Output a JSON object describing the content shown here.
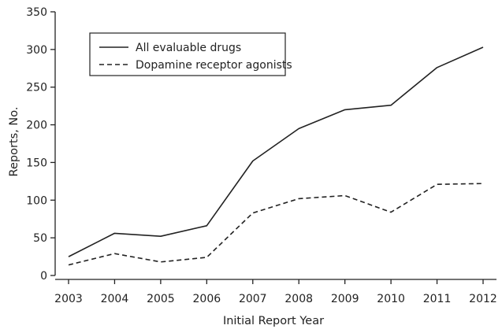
{
  "chart_data": {
    "type": "line",
    "x": [
      2003,
      2004,
      2005,
      2006,
      2007,
      2008,
      2009,
      2010,
      2011,
      2012
    ],
    "x_tick_labels": [
      "2003",
      "2004",
      "2005",
      "2006",
      "2007",
      "2008",
      "2009",
      "2010",
      "2011",
      "2012"
    ],
    "y_ticks": [
      0,
      50,
      100,
      150,
      200,
      250,
      300,
      350
    ],
    "y_tick_labels": [
      "0",
      "50",
      "100",
      "150",
      "200",
      "250",
      "300",
      "350"
    ],
    "ylim": [
      0,
      350
    ],
    "xlabel": "Initial Report Year",
    "ylabel": "Reports, No.",
    "grid": false,
    "legend_position": "top-left",
    "series": [
      {
        "name": "All evaluable drugs",
        "style": "solid",
        "color": "#222222",
        "values": [
          25,
          56,
          52,
          66,
          152,
          195,
          220,
          226,
          276,
          303
        ]
      },
      {
        "name": "Dopamine receptor agonists",
        "style": "dashed",
        "color": "#222222",
        "values": [
          14,
          29,
          18,
          24,
          83,
          102,
          106,
          84,
          121,
          122
        ]
      }
    ]
  }
}
